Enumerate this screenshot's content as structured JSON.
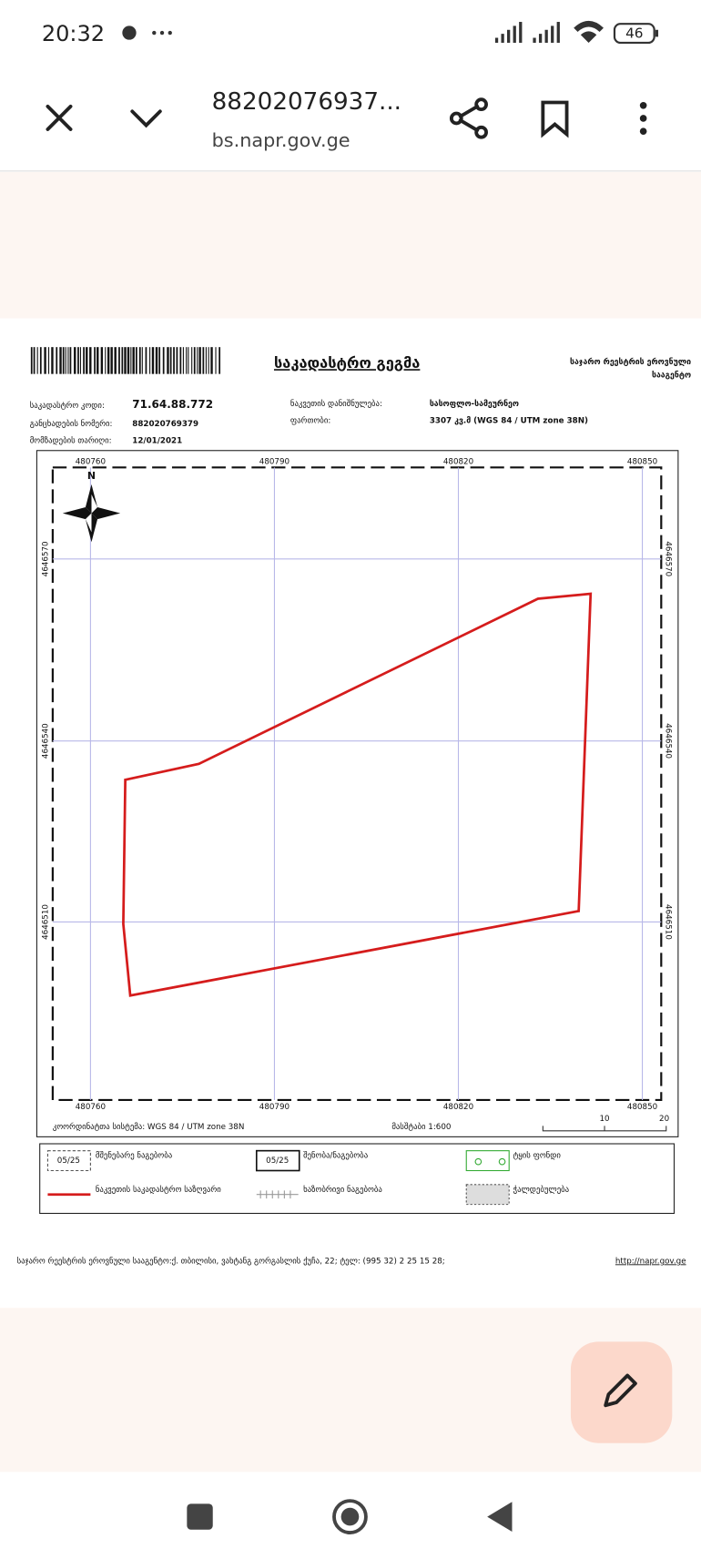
{
  "status_bar": {
    "time": "20:32",
    "battery": "46"
  },
  "toolbar": {
    "title": "88202076937...",
    "url": "bs.napr.gov.ge"
  },
  "document": {
    "title": "საკადასტრო გეგმა",
    "agency": [
      "საჯარო რეესტრის ეროვნული",
      "სააგენტო"
    ],
    "fields": [
      {
        "label": "საკადასტრო კოდი:",
        "value": "71.64.88.772"
      },
      {
        "label": "განცხადების ნომერი:",
        "value": "882020769379"
      },
      {
        "label": "მომზადების თარიღი:",
        "value": "12/01/2021"
      },
      {
        "label": "ნაკვეთის დანიშნულება:",
        "value": "სასოფლო-სამეურნეო"
      },
      {
        "label": "ფართობი:",
        "value": "3307 კვ.მ (WGS 84 / UTM zone 38N)"
      }
    ],
    "map": {
      "north": "N",
      "x_labels": [
        "480760",
        "480790",
        "480820",
        "480850"
      ],
      "y_labels": [
        "4646570",
        "4646540",
        "4646510"
      ],
      "coordinate_system": "კოორდინატთა სისტემა: WGS 84 / UTM zone 38N",
      "scale": "მასშტაბი 1:600",
      "scale_bar": [
        "10",
        "20"
      ]
    },
    "legend": [
      {
        "sample": "05/25",
        "label": "მშენებარე ნაგებობა"
      },
      {
        "sample": "05/25",
        "label": "შენობა/ნაგებობა"
      },
      {
        "label": "ტყის ფონდი"
      },
      {
        "label": "ნაკვეთის საკადასტრო საზღვარი"
      },
      {
        "label": "ხაზობრივი ნაგებობა"
      },
      {
        "label": "ჭალდებულება"
      }
    ],
    "footer": {
      "address": "საჯარო რეესტრის ეროვნული სააგენტო:ქ. თბილისი, ვახტანგ გორგასლის ქუჩა, 22; ტელ: (995 32) 2 25 15 28;",
      "link": "http://napr.gov.ge"
    }
  }
}
